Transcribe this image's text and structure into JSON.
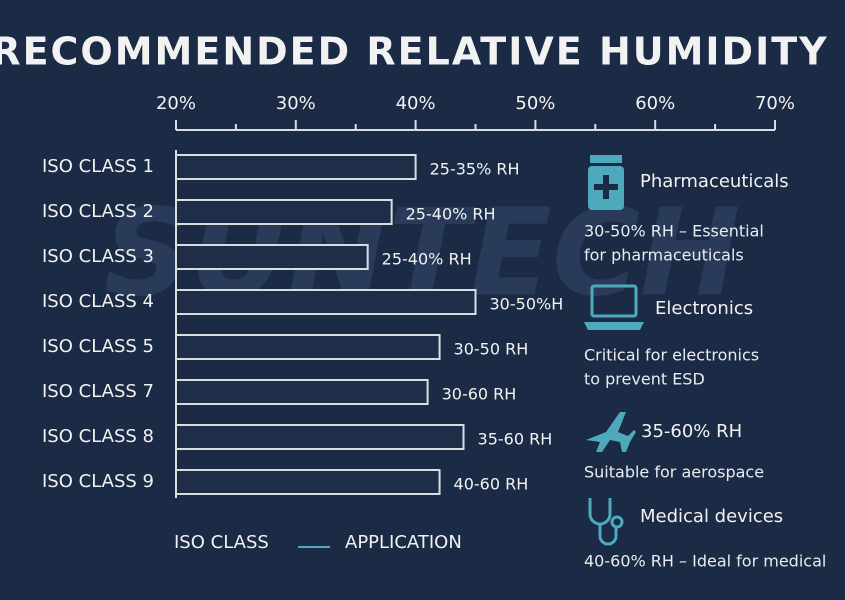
{
  "chart_data": {
    "type": "hbar",
    "title": "RECOMMENDED RELATIVE HUMIDITY",
    "watermark": "SUNTECH",
    "categories": [
      "ISO CLASS 1",
      "ISO CLASS 2",
      "ISO CLASS 3",
      "ISO CLASS 4",
      "ISO CLASS 5",
      "ISO CLASS 7",
      "ISO CLASS 8",
      "ISO CLASS 9"
    ],
    "ylabel": "ISO CLASS",
    "series": [
      {
        "name": "APPLICATION",
        "color": "#d9dde2",
        "values": [
          40,
          38,
          36,
          45,
          42,
          41,
          44,
          42
        ]
      }
    ],
    "bar_labels": [
      "25-35% RH",
      "25-40% RH",
      "25-40% RH",
      "30-50%H",
      "30-50 RH",
      "30-60 RH",
      "35-60 RH",
      "40-60 RH"
    ],
    "xlim": [
      20,
      70
    ],
    "xticks": [
      {
        "value": 20,
        "label": "20%"
      },
      {
        "value": 30,
        "label": "30%"
      },
      {
        "value": 40,
        "label": "40%"
      },
      {
        "value": 50,
        "label": "50%"
      },
      {
        "value": 60,
        "label": "60%"
      },
      {
        "value": 70,
        "label": "70%"
      }
    ],
    "panels": [
      {
        "title": "Pharmaceuticals",
        "lines": [
          "30-50% RH – Essential",
          "for pharmaceuticals"
        ]
      },
      {
        "title": "Electronics",
        "lines": [
          "Critical for electronics",
          "to prevent ESD"
        ]
      },
      {
        "title": "35-60% RH",
        "lines": [
          "Suitable for aerospace"
        ]
      },
      {
        "title": "Medical devices",
        "lines": [
          "40-60% RH – Ideal for medical"
        ]
      }
    ]
  }
}
